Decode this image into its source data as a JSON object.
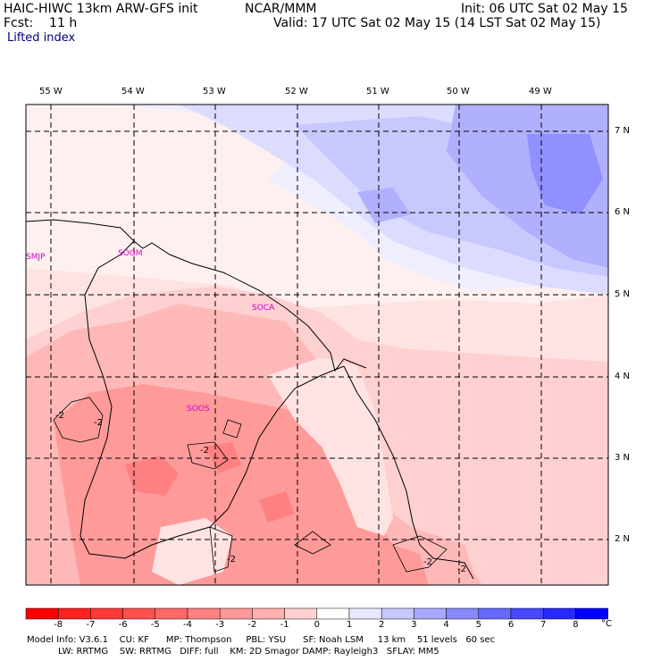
{
  "header": {
    "title": "HAIC-HIWC 13km ARW-GFS init",
    "org": "NCAR/MMM",
    "fcst": "Fcst:    11 h",
    "init": "Init: 06 UTC Sat 02 May 15",
    "valid": "Valid: 17 UTC Sat 02 May 15 (14 LST Sat 02 May 15)",
    "field": "Lifted index"
  },
  "lon_labels": [
    "55 W",
    "54 W",
    "53 W",
    "52 W",
    "51 W",
    "50 W",
    "49 W"
  ],
  "lat_labels": [
    "7 N",
    "6 N",
    "5 N",
    "4 N",
    "3 N",
    "2 N"
  ],
  "stations": [
    "SMJP",
    "SOGM",
    "SOCA",
    "SOOS"
  ],
  "contour_labels": [
    "-2",
    "-2",
    "-2",
    "-2",
    "-2",
    "-2"
  ],
  "colorbar": {
    "labels": [
      "-8",
      "-7",
      "-6",
      "-5",
      "-4",
      "-3",
      "-2",
      "-1",
      "0",
      "1",
      "2",
      "3",
      "4",
      "5",
      "6",
      "7",
      "8"
    ],
    "unit": "°C",
    "colors": [
      "#ff0000",
      "#ff2020",
      "#ff3838",
      "#ff5050",
      "#ff6868",
      "#ff8080",
      "#ff9898",
      "#ffb0b0",
      "#ffd0d0",
      "#ffffff",
      "#e8e8ff",
      "#c8c8ff",
      "#a8a8ff",
      "#8888ff",
      "#6868ff",
      "#4848ff",
      "#2828ff",
      "#0000ff"
    ]
  },
  "model_info": {
    "line1": "Model Info: V3.6.1    CU: KF      MP: Thompson     PBL: YSU      SF: Noah LSM     13 km    51 levels   60 sec",
    "line2": "           LW: RRTMG    SW: RRTMG   DIFF: full    KM: 2D Smagor DAMP: Rayleigh3   SFLAY: MM5"
  }
}
